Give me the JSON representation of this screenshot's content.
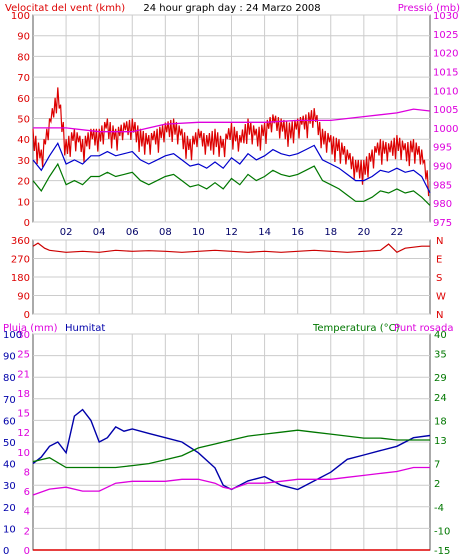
{
  "colors": {
    "wind": "#dd0000",
    "gust": "#dd0000",
    "avg_wind": "#0000cc",
    "min_wind": "#007700",
    "pressure": "#dd00dd",
    "direction": "#cc0000",
    "humidity": "#0000aa",
    "temperature": "#007700",
    "dewpoint": "#dd00dd",
    "rain": "#dd0000",
    "grid": "#cccccc",
    "frame": "#555555"
  },
  "chart_data": [
    {
      "type": "line",
      "title": "24 hour graph day : 24 Marzo 2008",
      "left_label": "Velocitat del vent (kmh)",
      "right_label": "Pressió (mb)",
      "ylim": [
        0,
        100
      ],
      "y2lim": [
        975,
        1030
      ],
      "yticks": [
        0,
        10,
        20,
        30,
        40,
        50,
        60,
        70,
        80,
        90,
        100
      ],
      "y2ticks": [
        975,
        980,
        985,
        990,
        995,
        1000,
        1005,
        1010,
        1015,
        1020,
        1025,
        1030
      ],
      "xticks": [
        "02",
        "04",
        "06",
        "08",
        "10",
        "12",
        "14",
        "16",
        "18",
        "20",
        "22"
      ],
      "grid": true,
      "series": [
        {
          "key": "gust",
          "kind": "spiky",
          "x": [
            0,
            0.5,
            1,
            1.5,
            2,
            2.5,
            3,
            3.5,
            4,
            4.5,
            5,
            5.5,
            6,
            6.5,
            7,
            7.5,
            8,
            8.5,
            9,
            9.5,
            10,
            10.5,
            11,
            11.5,
            12,
            12.5,
            13,
            13.5,
            14,
            14.5,
            15,
            15.5,
            16,
            16.5,
            17,
            17.5,
            18,
            18.5,
            19,
            19.5,
            20,
            20.5,
            21,
            21.5,
            22,
            22.5,
            23,
            23.5,
            24
          ],
          "values": [
            45,
            35,
            50,
            65,
            40,
            45,
            40,
            45,
            45,
            50,
            45,
            48,
            50,
            45,
            42,
            45,
            48,
            50,
            45,
            40,
            45,
            42,
            45,
            40,
            48,
            42,
            50,
            45,
            48,
            52,
            50,
            48,
            50,
            52,
            55,
            45,
            42,
            40,
            35,
            30,
            30,
            35,
            40,
            38,
            42,
            38,
            40,
            35,
            20
          ]
        },
        {
          "key": "avg_wind",
          "kind": "line",
          "x": [
            0,
            0.5,
            1,
            1.5,
            2,
            2.5,
            3,
            3.5,
            4,
            4.5,
            5,
            5.5,
            6,
            6.5,
            7,
            7.5,
            8,
            8.5,
            9,
            9.5,
            10,
            10.5,
            11,
            11.5,
            12,
            12.5,
            13,
            13.5,
            14,
            14.5,
            15,
            15.5,
            16,
            16.5,
            17,
            17.5,
            18,
            18.5,
            19,
            19.5,
            20,
            20.5,
            21,
            21.5,
            22,
            22.5,
            23,
            23.5,
            24
          ],
          "values": [
            30,
            25,
            32,
            38,
            28,
            30,
            28,
            32,
            32,
            34,
            32,
            33,
            34,
            30,
            28,
            30,
            32,
            33,
            30,
            27,
            28,
            26,
            29,
            26,
            31,
            28,
            33,
            30,
            32,
            35,
            33,
            32,
            33,
            35,
            37,
            30,
            28,
            26,
            23,
            20,
            20,
            22,
            25,
            24,
            26,
            24,
            25,
            22,
            14
          ]
        },
        {
          "key": "min_wind",
          "kind": "line",
          "x": [
            0,
            0.5,
            1,
            1.5,
            2,
            2.5,
            3,
            3.5,
            4,
            4.5,
            5,
            5.5,
            6,
            6.5,
            7,
            7.5,
            8,
            8.5,
            9,
            9.5,
            10,
            10.5,
            11,
            11.5,
            12,
            12.5,
            13,
            13.5,
            14,
            14.5,
            15,
            15.5,
            16,
            16.5,
            17,
            17.5,
            18,
            18.5,
            19,
            19.5,
            20,
            20.5,
            21,
            21.5,
            22,
            22.5,
            23,
            23.5,
            24
          ],
          "values": [
            20,
            15,
            22,
            28,
            18,
            20,
            18,
            22,
            22,
            24,
            22,
            23,
            24,
            20,
            18,
            20,
            22,
            23,
            20,
            17,
            18,
            16,
            19,
            16,
            21,
            18,
            23,
            20,
            22,
            25,
            23,
            22,
            23,
            25,
            27,
            20,
            18,
            16,
            13,
            10,
            10,
            12,
            15,
            14,
            16,
            14,
            15,
            12,
            8
          ]
        },
        {
          "key": "pressure",
          "axis": "right",
          "kind": "line",
          "x": [
            0,
            2,
            4,
            6,
            8,
            10,
            12,
            14,
            16,
            18,
            20,
            22,
            23,
            24
          ],
          "values": [
            1000,
            1000,
            999,
            999,
            1001,
            1001.5,
            1001.5,
            1001.5,
            1002,
            1002,
            1003,
            1004,
            1005,
            1004.5
          ]
        }
      ]
    },
    {
      "type": "line",
      "left_label": "",
      "ylim": [
        0,
        360
      ],
      "yticks": [
        0,
        90,
        180,
        270,
        360
      ],
      "compass": [
        "N",
        "W",
        "S",
        "E",
        "N"
      ],
      "xticks": [
        "02",
        "04",
        "06",
        "08",
        "10",
        "12",
        "14",
        "16",
        "18",
        "20",
        "22"
      ],
      "grid": true,
      "series": [
        {
          "key": "direction",
          "kind": "line",
          "x": [
            0,
            0.3,
            0.7,
            1,
            2,
            3,
            4,
            5,
            6,
            7,
            8,
            9,
            10,
            11,
            12,
            13,
            14,
            15,
            16,
            17,
            18,
            19,
            20,
            21,
            21.5,
            22,
            22.5,
            23,
            23.5,
            24
          ],
          "values": [
            330,
            345,
            320,
            310,
            300,
            305,
            300,
            310,
            305,
            308,
            305,
            300,
            305,
            310,
            305,
            300,
            305,
            300,
            305,
            310,
            305,
            300,
            305,
            310,
            340,
            300,
            320,
            325,
            330,
            330
          ]
        }
      ]
    },
    {
      "type": "line",
      "left_label": "Pluja (mm)",
      "left_label2": "Humitat",
      "right_label": "Temperatura (°C)",
      "right_label2": "Punt rosada",
      "rain_ticks": [
        "0",
        "2",
        "4",
        "6",
        "8",
        "10",
        "12",
        "15",
        "18",
        "21",
        "25",
        "30"
      ],
      "humidity_ticks": [
        "0",
        "10",
        "20",
        "30",
        "40",
        "50",
        "60",
        "70",
        "80",
        "90",
        "100"
      ],
      "ylim": [
        -15,
        40
      ],
      "yticks": [
        -15,
        -10,
        -4,
        2,
        7,
        13,
        18,
        24,
        29,
        35,
        40
      ],
      "xticks": [
        "02",
        "04",
        "06",
        "08",
        "10",
        "12",
        "14",
        "16",
        "18",
        "20",
        "22"
      ],
      "grid": true,
      "series": [
        {
          "key": "humidity",
          "kind": "line",
          "axis": "humidity",
          "ylim": [
            0,
            100
          ],
          "x": [
            0,
            0.5,
            1,
            1.5,
            2,
            2.5,
            3,
            3.5,
            4,
            4.5,
            5,
            5.5,
            6,
            7,
            8,
            9,
            10,
            11,
            11.5,
            12,
            13,
            14,
            15,
            16,
            17,
            18,
            19,
            20,
            21,
            22,
            23,
            24
          ],
          "values": [
            40,
            43,
            48,
            50,
            45,
            62,
            65,
            60,
            50,
            52,
            57,
            55,
            56,
            54,
            52,
            50,
            45,
            38,
            30,
            28,
            32,
            34,
            30,
            28,
            32,
            36,
            42,
            44,
            46,
            48,
            52,
            53
          ]
        },
        {
          "key": "temperature",
          "kind": "line",
          "x": [
            0,
            1,
            2,
            3,
            4,
            5,
            6,
            7,
            8,
            9,
            10,
            11,
            12,
            13,
            14,
            15,
            16,
            17,
            18,
            19,
            20,
            21,
            22,
            23,
            24
          ],
          "values": [
            7.5,
            8.5,
            6,
            6,
            6,
            6,
            6.5,
            7,
            8,
            9,
            11,
            12,
            13,
            14,
            14.5,
            15,
            15.5,
            15,
            14.5,
            14,
            13.5,
            13.5,
            13,
            13,
            13
          ]
        },
        {
          "key": "dewpoint",
          "kind": "line",
          "x": [
            0,
            1,
            2,
            3,
            4,
            5,
            6,
            7,
            8,
            9,
            10,
            11,
            11.5,
            12,
            13,
            14,
            15,
            16,
            17,
            18,
            19,
            20,
            21,
            22,
            23,
            24
          ],
          "values": [
            -1,
            0.5,
            1,
            0,
            0,
            2,
            2.5,
            2.5,
            2.5,
            3,
            3,
            2,
            1,
            0.5,
            2,
            2,
            2.5,
            3,
            3,
            3,
            3.5,
            4,
            4.5,
            5,
            6,
            6
          ]
        },
        {
          "key": "rain",
          "kind": "line",
          "axis": "rain",
          "ylim": [
            0,
            30
          ],
          "x": [
            0,
            24
          ],
          "values": [
            0,
            0
          ]
        }
      ]
    }
  ]
}
